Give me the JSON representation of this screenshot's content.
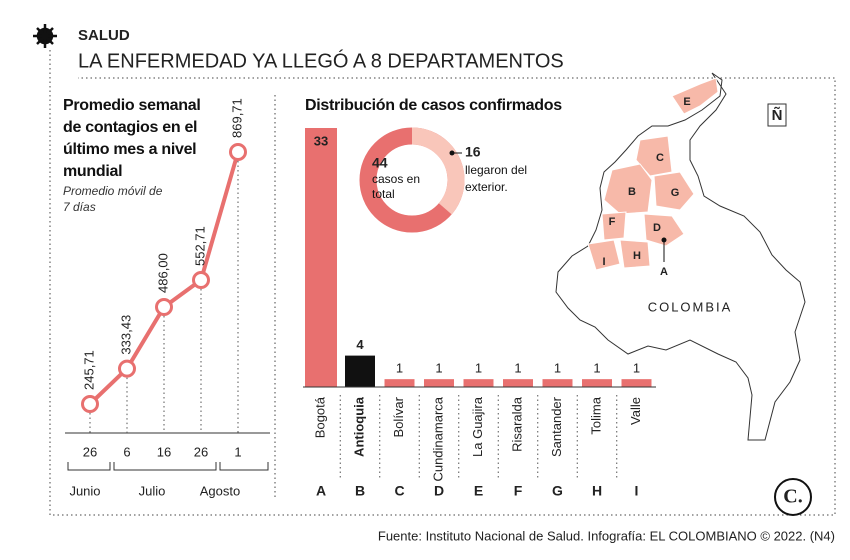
{
  "section": "SALUD",
  "title": "LA ENFERMEDAD YA LLEGÓ A 8 DEPARTAMENTOS",
  "chart_data": [
    {
      "type": "line",
      "title": "Promedio semanal de contagios en el último mes a nivel mundial",
      "subtitle": "Promedio móvil de 7 días",
      "categories": [
        "26",
        "6",
        "16",
        "26",
        "1"
      ],
      "months": [
        "Junio",
        "Julio",
        "Agosto"
      ],
      "values": [
        245.71,
        333.43,
        486.0,
        552.71,
        869.71
      ],
      "value_labels": [
        "245,71",
        "333,43",
        "486,00",
        "552,71",
        "869,71"
      ],
      "color": "#e8706f"
    },
    {
      "type": "bar",
      "title": "Distribución de casos confirmados",
      "categories": [
        "Bogotá",
        "Antioquia",
        "Bolívar",
        "Cundinamarca",
        "La Guajira",
        "Risaralda",
        "Santander",
        "Tolima",
        "Valle"
      ],
      "letters": [
        "A",
        "B",
        "C",
        "D",
        "E",
        "F",
        "G",
        "H",
        "I"
      ],
      "values": [
        33,
        4,
        1,
        1,
        1,
        1,
        1,
        1,
        1
      ],
      "colors": [
        "#e8706f",
        "#111111",
        "#e8706f",
        "#e8706f",
        "#e8706f",
        "#e8706f",
        "#e8706f",
        "#e8706f",
        "#e8706f"
      ]
    },
    {
      "type": "donut",
      "values": [
        44,
        16
      ],
      "labels": [
        "casos en total",
        "llegaron del exterior."
      ],
      "colors": [
        "#e8706f",
        "#f9c6ba"
      ]
    }
  ],
  "map": {
    "label": "COLOMBIA",
    "north": "Ñ"
  },
  "logo": "C.",
  "source": "Fuente: Instituto Nacional de Salud. Infografía: EL COLOMBIANO © 2022. (N4)"
}
